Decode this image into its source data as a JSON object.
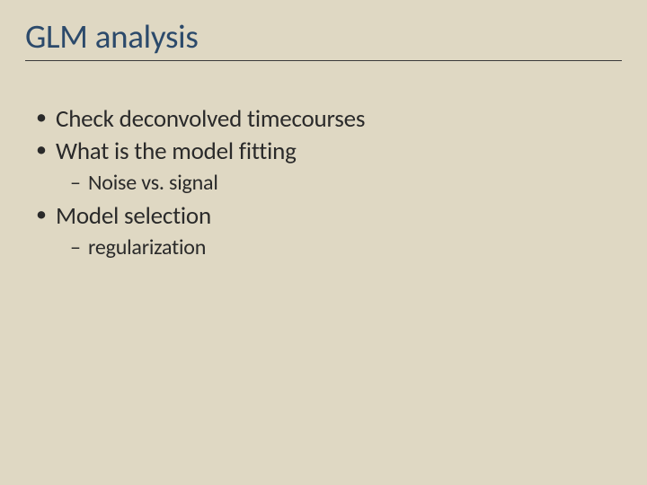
{
  "slide": {
    "title": "GLM analysis",
    "background_color": "#dfd8c3",
    "title_color": "#2c4a6b",
    "text_color": "#2a2a2a",
    "divider_color": "#3a3a3a",
    "title_fontsize": 37,
    "body_fontsize_l1": 27,
    "body_fontsize_l2": 24,
    "bullets": [
      {
        "level": 1,
        "text": "Check deconvolved timecourses"
      },
      {
        "level": 1,
        "text": "What is the model fitting"
      },
      {
        "level": 2,
        "text": "Noise vs. signal"
      },
      {
        "level": 1,
        "text": "Model selection"
      },
      {
        "level": 2,
        "text": "regularization"
      }
    ]
  }
}
